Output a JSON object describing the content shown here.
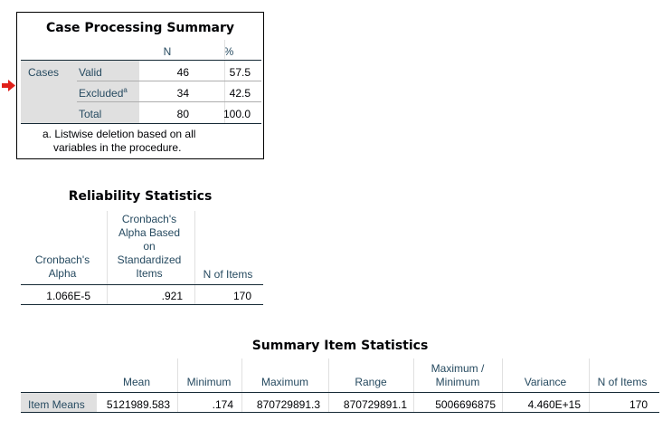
{
  "case_summary": {
    "title": "Case Processing Summary",
    "col_n": "N",
    "col_pct": "%",
    "group_label": "Cases",
    "rows": [
      {
        "label": "Valid",
        "n": "46",
        "pct": "57.5"
      },
      {
        "label": "Excluded",
        "sup": "a",
        "n": "34",
        "pct": "42.5"
      },
      {
        "label": "Total",
        "n": "80",
        "pct": "100.0"
      }
    ],
    "footnote_line1": "a. Listwise deletion based on all",
    "footnote_line2": "variables in the procedure."
  },
  "reliability": {
    "title": "Reliability Statistics",
    "col1_l1": "Cronbach's",
    "col1_l2": "Alpha",
    "col2_l1": "Cronbach's",
    "col2_l2": "Alpha Based",
    "col2_l3": "on",
    "col2_l4": "Standardized",
    "col2_l5": "Items",
    "col3": "N of Items",
    "alpha": "1.066E-5",
    "alpha_std": ".921",
    "n_items": "170"
  },
  "summary_items": {
    "title": "Summary Item Statistics",
    "headers": {
      "mean": "Mean",
      "minimum": "Minimum",
      "maximum": "Maximum",
      "range": "Range",
      "maxmin_l1": "Maximum /",
      "maxmin_l2": "Minimum",
      "variance": "Variance",
      "n_items": "N of Items"
    },
    "row_label": "Item Means",
    "values": {
      "mean": "5121989.583",
      "minimum": ".174",
      "maximum": "870729891.3",
      "range": "870729891.1",
      "maxmin": "5006696875",
      "variance": "4.460E+15",
      "n_items": "170"
    }
  },
  "colors": {
    "header_text": "#264a60",
    "row_header_bg": "#e0e0e0",
    "marker_arrow": "#e0201a"
  },
  "icons": {
    "marker": "red-arrow-icon"
  }
}
